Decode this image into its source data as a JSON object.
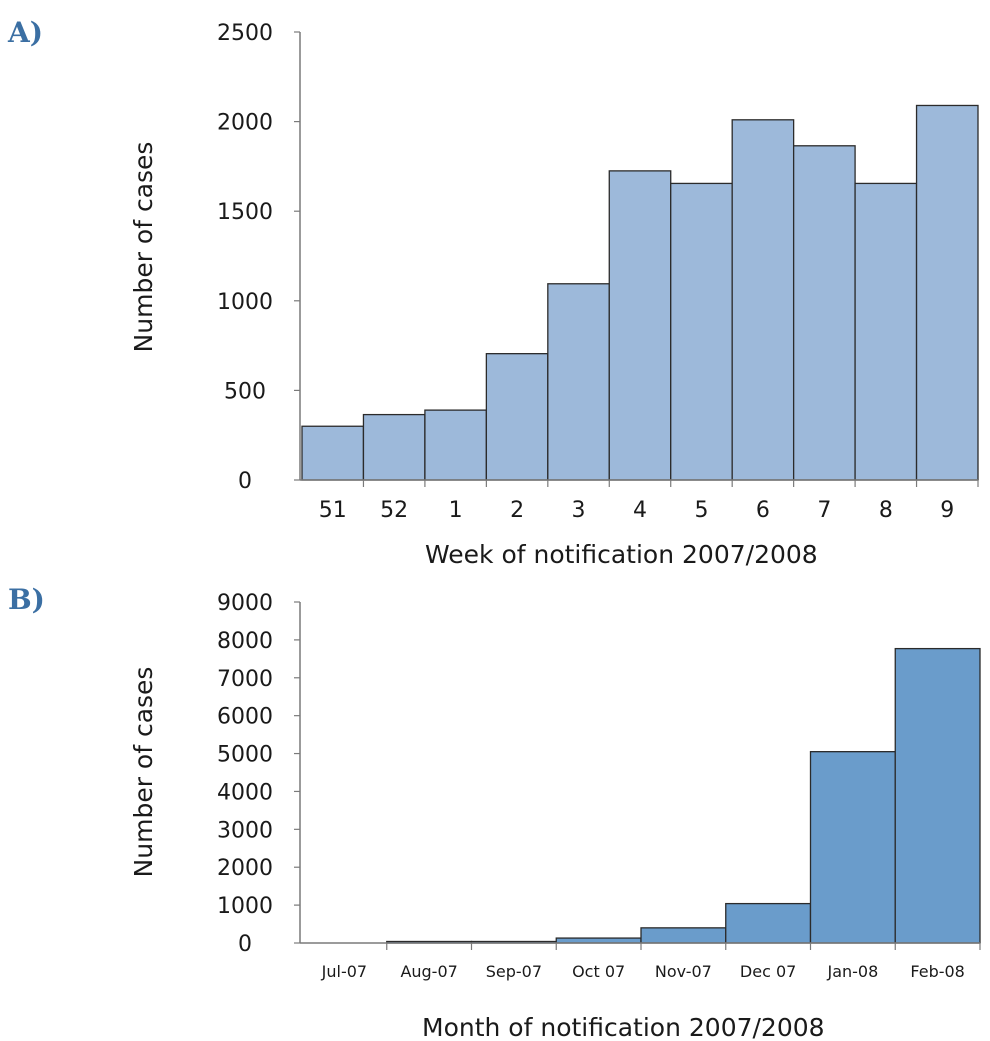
{
  "chart_data": [
    {
      "panel_label": "A)",
      "type": "bar",
      "categories": [
        "51",
        "52",
        "1",
        "2",
        "3",
        "4",
        "5",
        "6",
        "7",
        "8",
        "9"
      ],
      "values": [
        300,
        365,
        390,
        705,
        1095,
        1725,
        1655,
        2010,
        1865,
        1655,
        2090
      ],
      "xlabel": "Week of notification 2007/2008",
      "ylabel": "Number of cases",
      "ylim": [
        0,
        2500
      ],
      "yticks": [
        "0",
        "500",
        "1000",
        "1500",
        "2000",
        "2500"
      ],
      "bar_color": "#9db9da",
      "grid": false
    },
    {
      "panel_label": "B)",
      "type": "bar",
      "categories": [
        "Jul-07",
        "Aug-07",
        "Sep-07",
        "Oct 07",
        "Nov-07",
        "Dec 07",
        "Jan-08",
        "Feb-08"
      ],
      "values": [
        0,
        40,
        40,
        130,
        400,
        1040,
        5050,
        7770
      ],
      "xlabel": "Month of notification 2007/2008",
      "ylabel": "Number of cases",
      "ylim": [
        0,
        9000
      ],
      "yticks": [
        "0",
        "1000",
        "2000",
        "3000",
        "4000",
        "5000",
        "6000",
        "7000",
        "8000",
        "9000"
      ],
      "bar_color": "#6a9ccb",
      "grid": false
    }
  ]
}
